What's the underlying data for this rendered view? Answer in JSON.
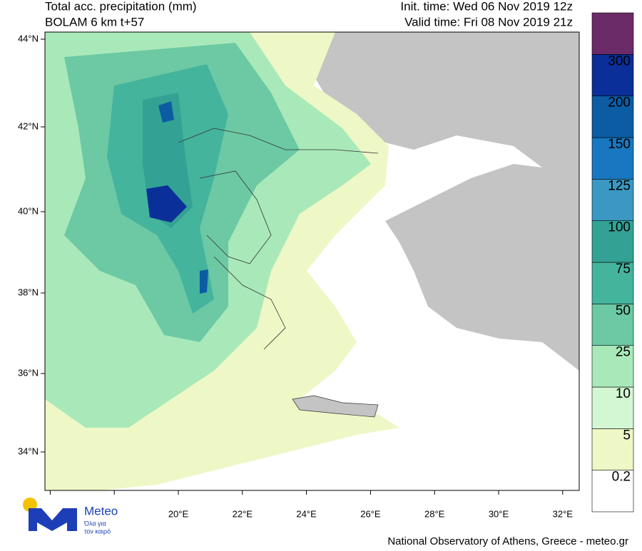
{
  "header": {
    "title": "Total acc. precipitation (mm)",
    "model": "BOLAM 6 km t+57",
    "init_time": "Init. time: Wed 06 Nov 2019 12z",
    "valid_time": "Valid time: Fri 08 Nov 2019 21z"
  },
  "map": {
    "lat_labels": [
      "44°N",
      "42°N",
      "40°N",
      "38°N",
      "36°N",
      "34°N"
    ],
    "lon_labels": [
      "20°E",
      "22°E",
      "24°E",
      "26°E",
      "28°E",
      "30°E",
      "32°E"
    ]
  },
  "colorbar": {
    "levels": [
      0.2,
      5,
      10,
      25,
      50,
      75,
      100,
      125,
      150,
      200,
      300
    ],
    "colors": [
      "#ffffff",
      "#eef7c6",
      "#d3f7d3",
      "#a9e9b9",
      "#6cc9a4",
      "#44b49c",
      "#33a294",
      "#3a98c2",
      "#1877c0",
      "#0c5ca4",
      "#0b2f98",
      "#6b2b68"
    ]
  },
  "logo": {
    "name": "Meteo",
    "tagline_1": "Όλα για",
    "tagline_2": "τον καιρό"
  },
  "footer": "National Observatory of Athens, Greece - meteo.gr"
}
